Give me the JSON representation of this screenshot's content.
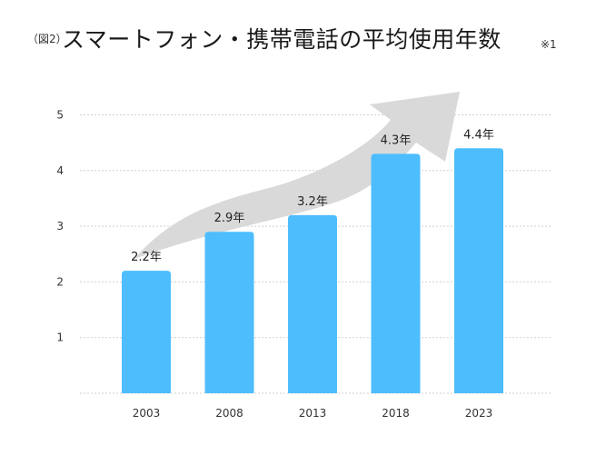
{
  "header": {
    "figure_label": "（図2）",
    "title": "スマートフォン・携帯電話の平均使用年数",
    "note_mark": "※1"
  },
  "colors": {
    "bar": "#4dbdfd",
    "arrow": "#d9d9d9",
    "grid": "#d0d0d0"
  },
  "chart_data": {
    "type": "bar",
    "title": "スマートフォン・携帯電話の平均使用年数",
    "categories": [
      "2003",
      "2008",
      "2013",
      "2018",
      "2023"
    ],
    "values": [
      2.2,
      2.9,
      3.2,
      4.3,
      4.4
    ],
    "data_labels": [
      "2.2年",
      "2.9年",
      "3.2年",
      "4.3年",
      "4.4年"
    ],
    "yticks": [
      1,
      2,
      3,
      4,
      5
    ],
    "ylim": [
      0,
      5
    ],
    "xlabel": "",
    "ylabel": "",
    "grid": true,
    "unit": "年",
    "annotation": "upward trend arrow"
  }
}
